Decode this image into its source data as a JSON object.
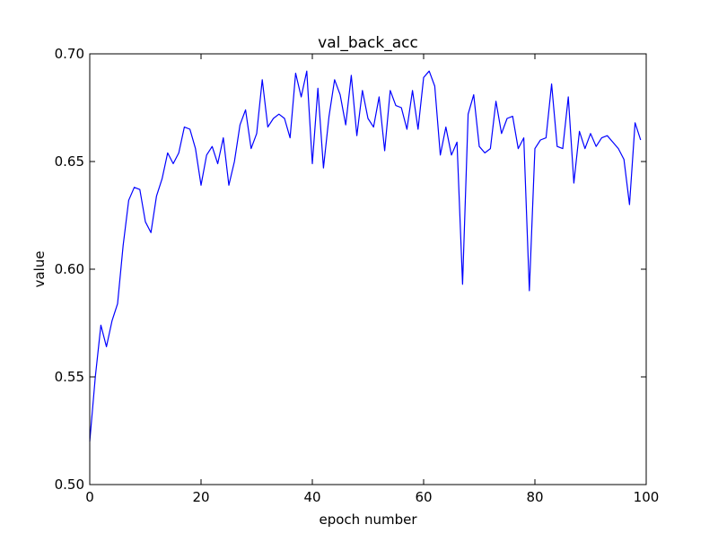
{
  "chart_data": {
    "type": "line",
    "title": "val_back_acc",
    "xlabel": "epoch number",
    "ylabel": "value",
    "xlim": [
      0,
      100
    ],
    "ylim": [
      0.5,
      0.7
    ],
    "x_ticks": [
      0,
      20,
      40,
      60,
      80,
      100
    ],
    "x_tick_labels": [
      "0",
      "20",
      "40",
      "60",
      "80",
      "100"
    ],
    "y_ticks": [
      0.5,
      0.55,
      0.6,
      0.65,
      0.7
    ],
    "y_tick_labels": [
      "0.50",
      "0.55",
      "0.60",
      "0.65",
      "0.70"
    ],
    "grid": false,
    "series": [
      {
        "color": "#0000ff",
        "x": [
          0,
          1,
          2,
          3,
          4,
          5,
          6,
          7,
          8,
          9,
          10,
          11,
          12,
          13,
          14,
          15,
          16,
          17,
          18,
          19,
          20,
          21,
          22,
          23,
          24,
          25,
          26,
          27,
          28,
          29,
          30,
          31,
          32,
          33,
          34,
          35,
          36,
          37,
          38,
          39,
          40,
          41,
          42,
          43,
          44,
          45,
          46,
          47,
          48,
          49,
          50,
          51,
          52,
          53,
          54,
          55,
          56,
          57,
          58,
          59,
          60,
          61,
          62,
          63,
          64,
          65,
          66,
          67,
          68,
          69,
          70,
          71,
          72,
          73,
          74,
          75,
          76,
          77,
          78,
          79,
          80,
          81,
          82,
          83,
          84,
          85,
          86,
          87,
          88,
          89,
          90,
          91,
          92,
          93,
          94,
          95,
          96,
          97,
          98,
          99
        ],
        "values": [
          0.52,
          0.55,
          0.574,
          0.564,
          0.576,
          0.584,
          0.611,
          0.632,
          0.638,
          0.637,
          0.622,
          0.617,
          0.634,
          0.642,
          0.654,
          0.649,
          0.654,
          0.666,
          0.665,
          0.656,
          0.639,
          0.653,
          0.657,
          0.649,
          0.661,
          0.639,
          0.65,
          0.667,
          0.674,
          0.656,
          0.663,
          0.688,
          0.666,
          0.67,
          0.672,
          0.67,
          0.661,
          0.691,
          0.68,
          0.692,
          0.649,
          0.684,
          0.647,
          0.671,
          0.688,
          0.681,
          0.667,
          0.69,
          0.662,
          0.683,
          0.67,
          0.666,
          0.68,
          0.655,
          0.683,
          0.676,
          0.675,
          0.665,
          0.683,
          0.665,
          0.689,
          0.692,
          0.685,
          0.653,
          0.666,
          0.653,
          0.659,
          0.593,
          0.672,
          0.681,
          0.657,
          0.654,
          0.656,
          0.678,
          0.663,
          0.67,
          0.671,
          0.656,
          0.661,
          0.59,
          0.656,
          0.66,
          0.661,
          0.686,
          0.657,
          0.656,
          0.68,
          0.64,
          0.664,
          0.656,
          0.663,
          0.657,
          0.661,
          0.662,
          0.659,
          0.656,
          0.651,
          0.63,
          0.668,
          0.66
        ]
      }
    ]
  }
}
